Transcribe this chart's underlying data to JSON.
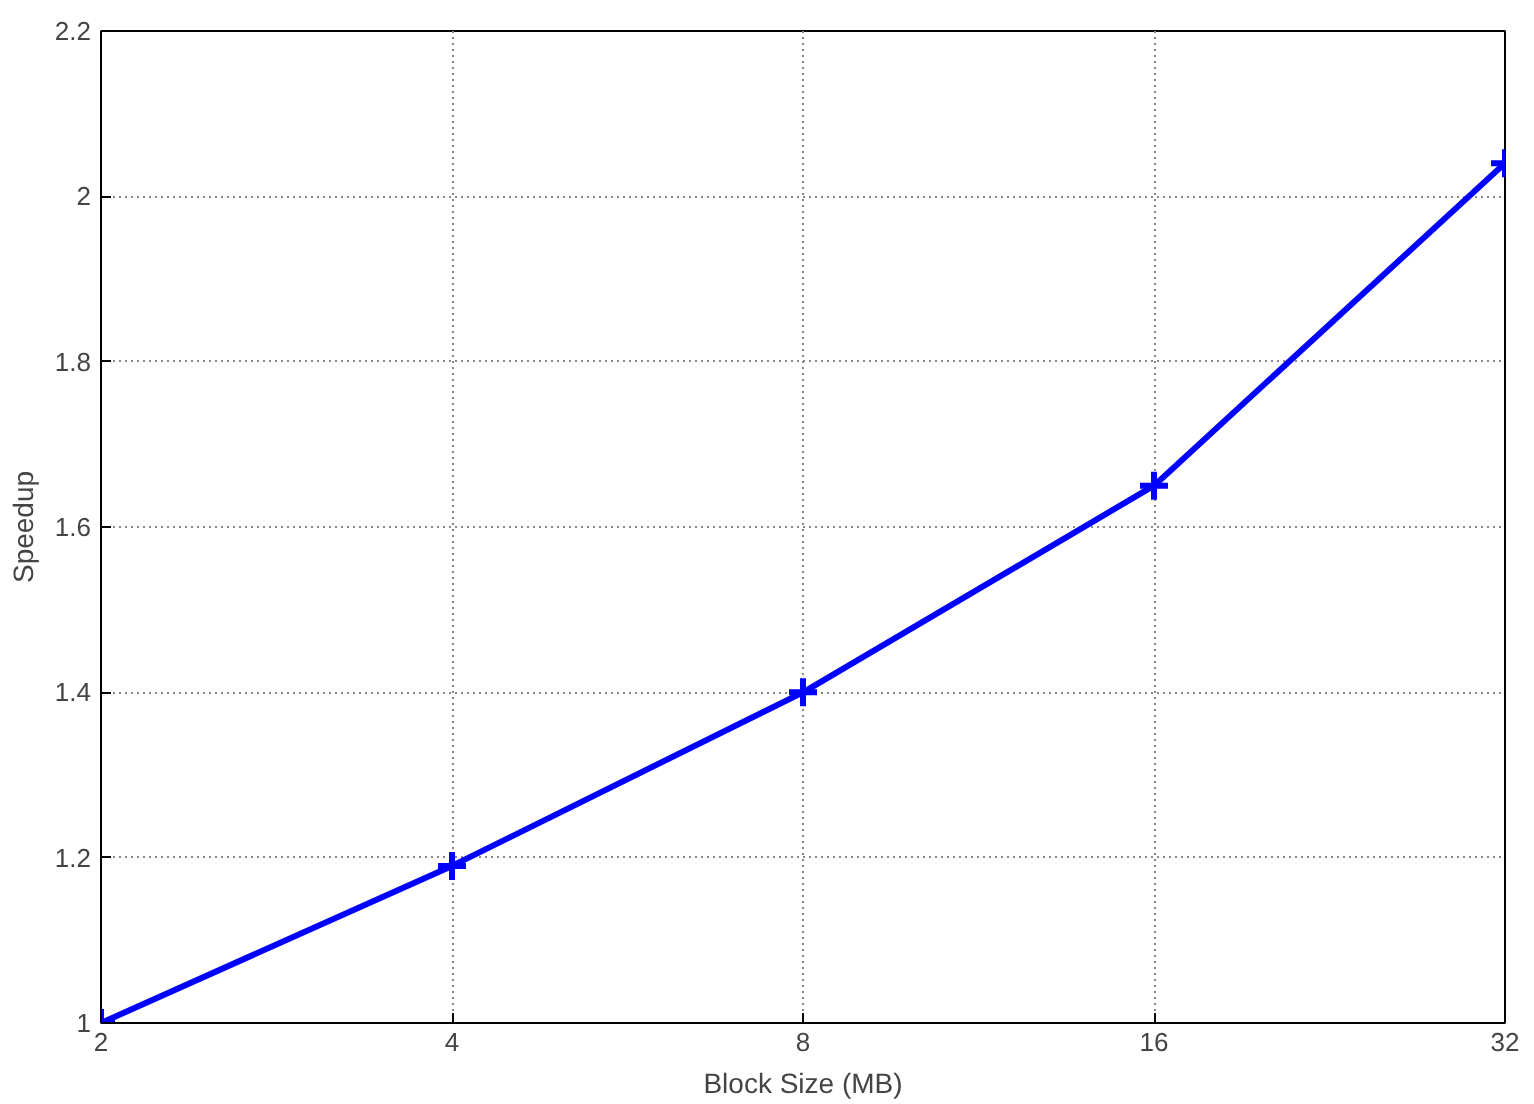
{
  "chart_data": {
    "type": "line",
    "xlabel": "Block Size (MB)",
    "ylabel": "Speedup",
    "categories": [
      "2",
      "4",
      "8",
      "16",
      "32"
    ],
    "series": [
      {
        "color": "#0000ff",
        "values": [
          1.0,
          1.19,
          1.4,
          1.65,
          2.04
        ]
      }
    ],
    "ylim": [
      1,
      2.2
    ],
    "yticks": [
      1,
      1.2,
      1.4,
      1.6,
      1.8,
      2,
      2.2
    ],
    "grid": true,
    "marker": "cross",
    "line_style": "solid"
  }
}
